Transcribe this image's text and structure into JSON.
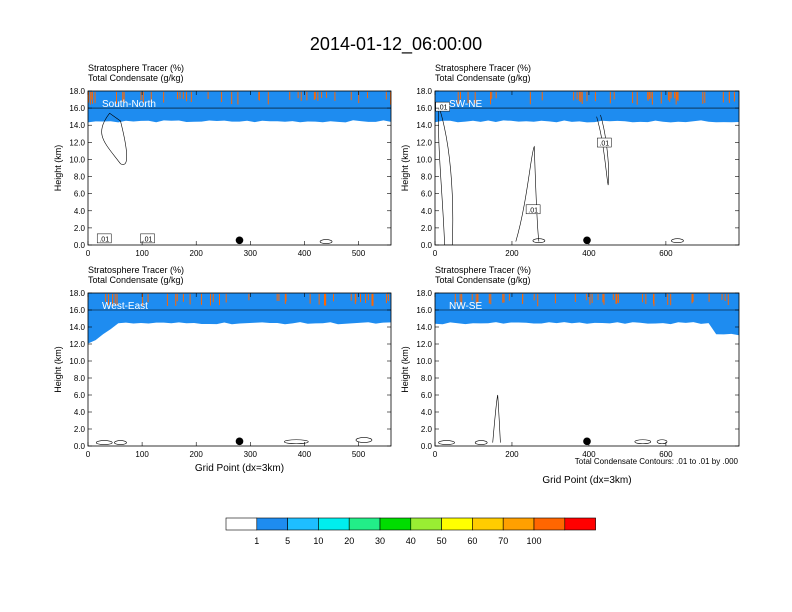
{
  "figure": {
    "title": "2014-01-12_06:00:00",
    "footnote": "Total Condensate Contours: .01 to .01 by .000"
  },
  "colorbar": {
    "colors": [
      "#ffffff",
      "#1e8cf0",
      "#1ebeff",
      "#00eeee",
      "#22ee88",
      "#00dd00",
      "#99ee33",
      "#ffff00",
      "#ffcc00",
      "#ffa000",
      "#ff6600",
      "#ff0000"
    ],
    "labels": [
      "1",
      "5",
      "10",
      "20",
      "30",
      "40",
      "50",
      "60",
      "70",
      "100"
    ]
  },
  "chart_data": [
    {
      "type": "heatmap",
      "subtitle_line1": "Stratosphere Tracer   (%)",
      "subtitle_line2": "Total Condensate   (g/kg)",
      "panel_label": "South-North",
      "ylabel": "Height (km)",
      "xlabel": "",
      "xlim": [
        0,
        560
      ],
      "ylim": [
        0,
        18
      ],
      "xticks": [
        "0",
        "100",
        "200",
        "300",
        "400",
        "500"
      ],
      "yticks": [
        "0.0",
        "2.0",
        "4.0",
        "6.0",
        "8.0",
        "10.0",
        "12.0",
        "14.0",
        "16.0",
        "18.0"
      ],
      "marker_x": 280,
      "contour_labels": [
        ".01",
        ".01"
      ]
    },
    {
      "type": "heatmap",
      "subtitle_line1": "Stratosphere Tracer   (%)",
      "subtitle_line2": "Total Condensate   (g/kg)",
      "panel_label": "SW-NE",
      "ylabel": "Height (km)",
      "xlabel": "",
      "xlim": [
        0,
        790
      ],
      "ylim": [
        0,
        18
      ],
      "xticks": [
        "0",
        "200",
        "400",
        "600"
      ],
      "yticks": [
        "0.0",
        "2.0",
        "4.0",
        "6.0",
        "8.0",
        "10.0",
        "12.0",
        "14.0",
        "16.0",
        "18.0"
      ],
      "marker_x": 395,
      "contour_labels": [
        ".01",
        ".01",
        ".01"
      ]
    },
    {
      "type": "heatmap",
      "subtitle_line1": "Stratosphere Tracer   (%)",
      "subtitle_line2": "Total Condensate   (g/kg)",
      "panel_label": "West-East",
      "ylabel": "Height (km)",
      "xlabel": "Grid Point (dx=3km)",
      "xlim": [
        0,
        560
      ],
      "ylim": [
        0,
        18
      ],
      "xticks": [
        "0",
        "100",
        "200",
        "300",
        "400",
        "500"
      ],
      "yticks": [
        "0.0",
        "2.0",
        "4.0",
        "6.0",
        "8.0",
        "10.0",
        "12.0",
        "14.0",
        "16.0",
        "18.0"
      ],
      "marker_x": 280,
      "contour_labels": []
    },
    {
      "type": "heatmap",
      "subtitle_line1": "Stratosphere Tracer   (%)",
      "subtitle_line2": "Total Condensate   (g/kg)",
      "panel_label": "NW-SE",
      "ylabel": "Height (km)",
      "xlabel": "Grid Point (dx=3km)",
      "xlim": [
        0,
        790
      ],
      "ylim": [
        0,
        18
      ],
      "xticks": [
        "0",
        "200",
        "400",
        "600"
      ],
      "yticks": [
        "0.0",
        "2.0",
        "4.0",
        "6.0",
        "8.0",
        "10.0",
        "12.0",
        "14.0",
        "16.0",
        "18.0"
      ],
      "marker_x": 395,
      "contour_labels": []
    }
  ]
}
